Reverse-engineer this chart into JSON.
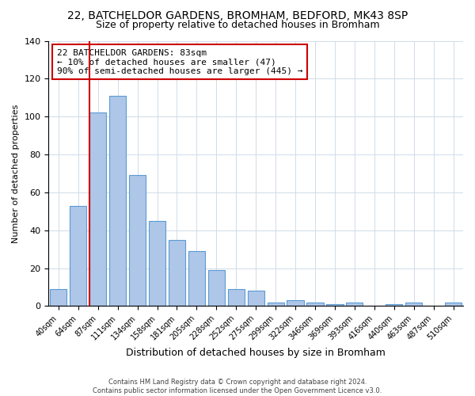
{
  "title": "22, BATCHELDOR GARDENS, BROMHAM, BEDFORD, MK43 8SP",
  "subtitle": "Size of property relative to detached houses in Bromham",
  "xlabel": "Distribution of detached houses by size in Bromham",
  "ylabel": "Number of detached properties",
  "bar_labels": [
    "40sqm",
    "64sqm",
    "87sqm",
    "111sqm",
    "134sqm",
    "158sqm",
    "181sqm",
    "205sqm",
    "228sqm",
    "252sqm",
    "275sqm",
    "299sqm",
    "322sqm",
    "346sqm",
    "369sqm",
    "393sqm",
    "416sqm",
    "440sqm",
    "463sqm",
    "487sqm",
    "510sqm"
  ],
  "bar_heights": [
    9,
    53,
    102,
    111,
    69,
    45,
    35,
    29,
    19,
    9,
    8,
    2,
    3,
    2,
    1,
    2,
    0,
    1,
    2,
    0,
    2
  ],
  "bar_color": "#aec6e8",
  "bar_edge_color": "#5b9bd5",
  "vline_color": "#cc0000",
  "ylim": [
    0,
    140
  ],
  "yticks": [
    0,
    20,
    40,
    60,
    80,
    100,
    120,
    140
  ],
  "annotation_title": "22 BATCHELDOR GARDENS: 83sqm",
  "annotation_line1": "← 10% of detached houses are smaller (47)",
  "annotation_line2": "90% of semi-detached houses are larger (445) →",
  "annotation_box_color": "#ffffff",
  "annotation_box_edge": "#cc0000",
  "footer1": "Contains HM Land Registry data © Crown copyright and database right 2024.",
  "footer2": "Contains public sector information licensed under the Open Government Licence v3.0."
}
